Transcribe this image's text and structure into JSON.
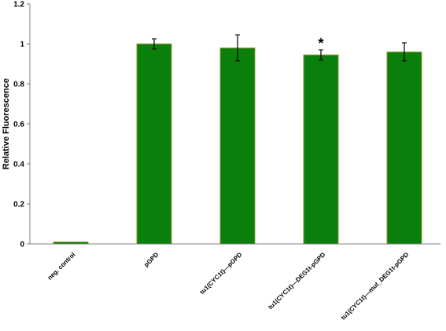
{
  "chart_data": {
    "type": "bar",
    "title": "",
    "xlabel": "",
    "ylabel": "Relative Fluorescence",
    "ylim": [
      0,
      1.2
    ],
    "yticks": [
      0,
      0.2,
      0.4,
      0.6,
      0.8,
      1,
      1.2
    ],
    "ytick_labels": [
      "0",
      "0.2",
      "0.4",
      "0.6",
      "0.8",
      "1",
      "1.2"
    ],
    "grid": false,
    "categories": [
      "neg. control",
      "pGPD",
      "tu1(CYC1t)—pGPD",
      "tu1(CYC1t)—DEG1t-pGPD",
      "tu1(CYC1t)—mut_DEG1t-pGPD"
    ],
    "values": [
      0.01,
      1.0,
      0.98,
      0.945,
      0.96
    ],
    "error": [
      0.0,
      0.025,
      0.065,
      0.025,
      0.045
    ],
    "annotations": [
      {
        "category_index": 3,
        "text": "*"
      }
    ],
    "colors": {
      "bar_fill": "#0b7f0b",
      "bar_edge": "#8f9a3a",
      "axis": "#7f7f7f"
    }
  }
}
